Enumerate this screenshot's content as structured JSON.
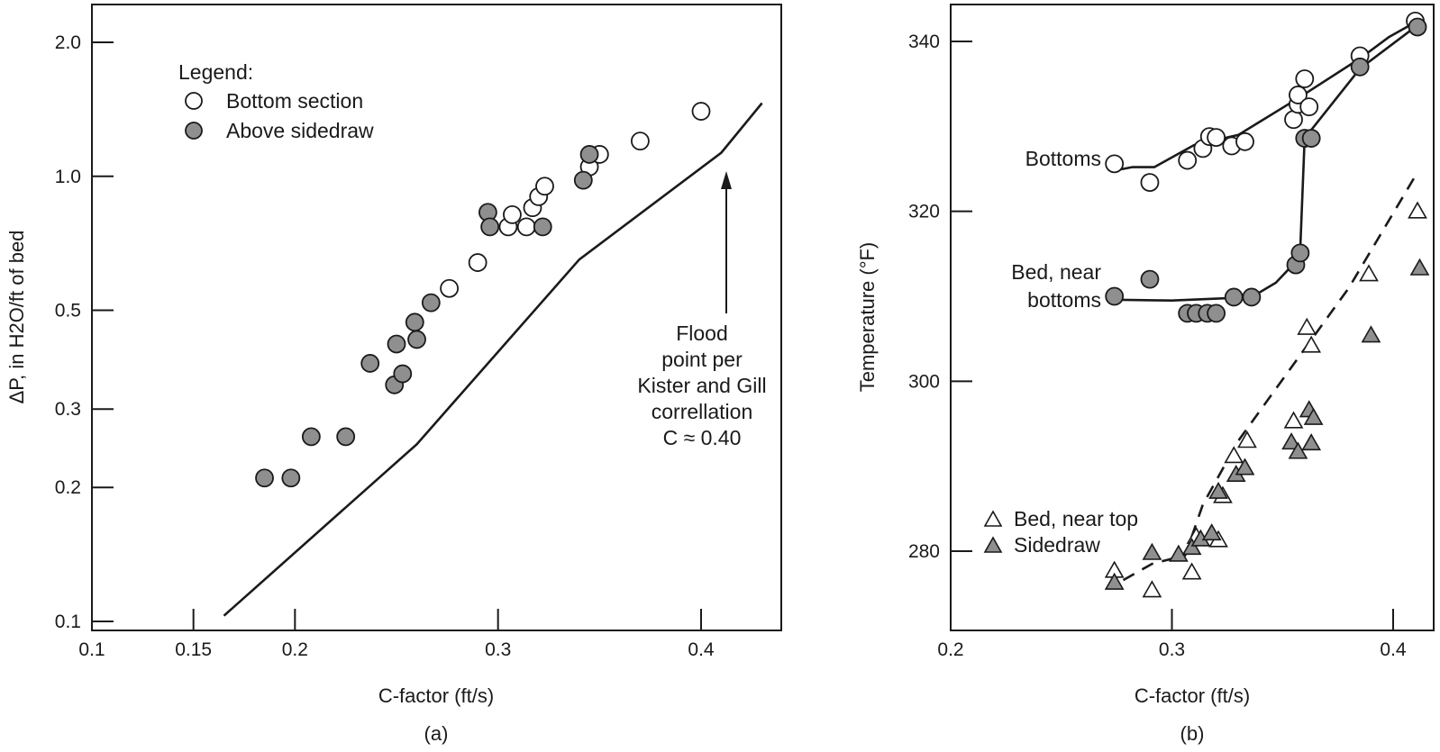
{
  "figure": {
    "panel_a_caption": "(a)",
    "panel_b_caption": "(b)"
  },
  "chart_data": [
    {
      "type": "scatter",
      "panel": "a",
      "xlabel": "C-factor (ft/s)",
      "ylabel": "ΔP, in H2O/ft of bed",
      "xlim": [
        0.1,
        0.44
      ],
      "ylim": [
        0.1,
        2.5
      ],
      "yscale": "log",
      "x_ticks": [
        0.1,
        0.15,
        0.2,
        0.3,
        0.4
      ],
      "x_tick_labels": [
        "0.1",
        "0.15",
        "0.2",
        "0.3",
        "0.4"
      ],
      "y_ticks": [
        0.1,
        0.2,
        0.3,
        0.5,
        1.0,
        2.0
      ],
      "y_tick_labels": [
        "0.1",
        "0.2",
        "0.3",
        "0.5",
        "1.0",
        "2.0"
      ],
      "grid": false,
      "legend": {
        "title": "Legend:",
        "position": "top-left",
        "entries": [
          "Bottom section",
          "Above sidedraw"
        ]
      },
      "series": [
        {
          "name": "Bottom section",
          "marker": "open-circle",
          "points": [
            [
              0.276,
              0.56
            ],
            [
              0.29,
              0.64
            ],
            [
              0.305,
              0.77
            ],
            [
              0.307,
              0.82
            ],
            [
              0.314,
              0.77
            ],
            [
              0.317,
              0.85
            ],
            [
              0.32,
              0.9
            ],
            [
              0.323,
              0.95
            ],
            [
              0.345,
              1.05
            ],
            [
              0.35,
              1.12
            ],
            [
              0.37,
              1.2
            ],
            [
              0.4,
              1.4
            ]
          ]
        },
        {
          "name": "Above sidedraw",
          "marker": "filled-circle",
          "points": [
            [
              0.185,
              0.21
            ],
            [
              0.198,
              0.21
            ],
            [
              0.208,
              0.26
            ],
            [
              0.225,
              0.26
            ],
            [
              0.237,
              0.38
            ],
            [
              0.249,
              0.34
            ],
            [
              0.253,
              0.36
            ],
            [
              0.25,
              0.42
            ],
            [
              0.26,
              0.43
            ],
            [
              0.259,
              0.47
            ],
            [
              0.267,
              0.52
            ],
            [
              0.295,
              0.83
            ],
            [
              0.296,
              0.77
            ],
            [
              0.322,
              0.77
            ],
            [
              0.342,
              0.98
            ],
            [
              0.345,
              1.12
            ]
          ]
        }
      ],
      "line": {
        "points": [
          [
            0.165,
            0.103
          ],
          [
            0.26,
            0.25
          ],
          [
            0.34,
            0.65
          ],
          [
            0.41,
            1.13
          ],
          [
            0.43,
            1.46
          ]
        ]
      },
      "annotations": [
        {
          "lines": [
            "Flood",
            "point per",
            "Kister and Gill",
            "correllation",
            "C ≈ 0.40"
          ],
          "arrow_to": [
            0.41,
            1.13
          ]
        }
      ]
    },
    {
      "type": "scatter",
      "panel": "b",
      "xlabel": "C-factor (ft/s)",
      "ylabel": "Temperature (°F)",
      "xlim": [
        0.2,
        0.42
      ],
      "ylim": [
        271,
        344.5
      ],
      "x_ticks": [
        0.2,
        0.3,
        0.4
      ],
      "x_tick_labels": [
        "0.2",
        "0.3",
        "0.4"
      ],
      "y_ticks": [
        280,
        300,
        320,
        340
      ],
      "y_tick_labels": [
        "280",
        "300",
        "320",
        "340"
      ],
      "grid": false,
      "legend": {
        "position": "bottom-left",
        "entries": [
          "Bed, near top",
          "Sidedraw"
        ]
      },
      "series": [
        {
          "name": "Bottoms",
          "marker": "open-circle",
          "points": [
            [
              0.274,
              325.6
            ],
            [
              0.29,
              323.4
            ],
            [
              0.307,
              326.0
            ],
            [
              0.314,
              327.4
            ],
            [
              0.317,
              328.8
            ],
            [
              0.32,
              328.7
            ],
            [
              0.327,
              327.7
            ],
            [
              0.333,
              328.2
            ],
            [
              0.355,
              330.8
            ],
            [
              0.357,
              332.6
            ],
            [
              0.357,
              333.7
            ],
            [
              0.36,
              335.6
            ],
            [
              0.362,
              332.3
            ],
            [
              0.385,
              338.3
            ],
            [
              0.41,
              342.4
            ]
          ]
        },
        {
          "name": "Bed, near bottoms",
          "marker": "filled-circle",
          "points": [
            [
              0.274,
              310.0
            ],
            [
              0.29,
              312.0
            ],
            [
              0.307,
              308.0
            ],
            [
              0.311,
              308.0
            ],
            [
              0.316,
              308.0
            ],
            [
              0.32,
              308.0
            ],
            [
              0.328,
              309.9
            ],
            [
              0.336,
              309.9
            ],
            [
              0.356,
              313.7
            ],
            [
              0.358,
              315.1
            ],
            [
              0.36,
              328.6
            ],
            [
              0.363,
              328.6
            ],
            [
              0.385,
              337.0
            ],
            [
              0.411,
              341.7
            ]
          ]
        },
        {
          "name": "Bed, near top",
          "marker": "open-triangle",
          "points": [
            [
              0.274,
              277.7
            ],
            [
              0.291,
              275.4
            ],
            [
              0.309,
              277.5
            ],
            [
              0.311,
              281.7
            ],
            [
              0.321,
              281.3
            ],
            [
              0.323,
              286.5
            ],
            [
              0.328,
              291.2
            ],
            [
              0.334,
              293.0
            ],
            [
              0.355,
              295.3
            ],
            [
              0.361,
              306.3
            ],
            [
              0.363,
              304.2
            ],
            [
              0.389,
              312.6
            ],
            [
              0.411,
              320.0
            ]
          ]
        },
        {
          "name": "Sidedraw",
          "marker": "filled-triangle",
          "points": [
            [
              0.274,
              276.3
            ],
            [
              0.291,
              279.8
            ],
            [
              0.303,
              279.6
            ],
            [
              0.309,
              280.4
            ],
            [
              0.313,
              281.4
            ],
            [
              0.318,
              282.1
            ],
            [
              0.321,
              287.0
            ],
            [
              0.329,
              289.0
            ],
            [
              0.333,
              289.8
            ],
            [
              0.354,
              292.8
            ],
            [
              0.357,
              291.7
            ],
            [
              0.362,
              296.6
            ],
            [
              0.363,
              292.7
            ],
            [
              0.364,
              295.7
            ],
            [
              0.39,
              305.4
            ],
            [
              0.412,
              313.3
            ]
          ]
        }
      ],
      "curves": [
        {
          "for": "Bottoms",
          "style": "solid",
          "points": [
            [
              0.274,
              324.8
            ],
            [
              0.282,
              325.2
            ],
            [
              0.292,
              325.2
            ],
            [
              0.31,
              327.8
            ],
            [
              0.33,
              329.0
            ],
            [
              0.357,
              333.3
            ],
            [
              0.385,
              338.0
            ],
            [
              0.398,
              340.5
            ],
            [
              0.411,
              342.4
            ]
          ]
        },
        {
          "for": "Bed, near bottoms",
          "style": "solid",
          "points": [
            [
              0.274,
              309.6
            ],
            [
              0.3,
              309.5
            ],
            [
              0.336,
              309.9
            ],
            [
              0.347,
              311.6
            ],
            [
              0.355,
              313.8
            ],
            [
              0.358,
              315.5
            ],
            [
              0.36,
              328.6
            ],
            [
              0.385,
              336.8
            ],
            [
              0.411,
              341.9
            ]
          ]
        },
        {
          "for": "Bed, near top / Sidedraw",
          "style": "dashed",
          "points": [
            [
              0.278,
              276.6
            ],
            [
              0.291,
              278.5
            ],
            [
              0.306,
              279.5
            ],
            [
              0.314,
              285.5
            ],
            [
              0.33,
              293.0
            ],
            [
              0.355,
              302.0
            ],
            [
              0.38,
              311.0
            ],
            [
              0.411,
              324.6
            ]
          ]
        }
      ],
      "curve_labels": [
        {
          "lines": [
            "Bottoms"
          ]
        },
        {
          "lines": [
            "Bed, near",
            "bottoms"
          ]
        }
      ]
    }
  ]
}
